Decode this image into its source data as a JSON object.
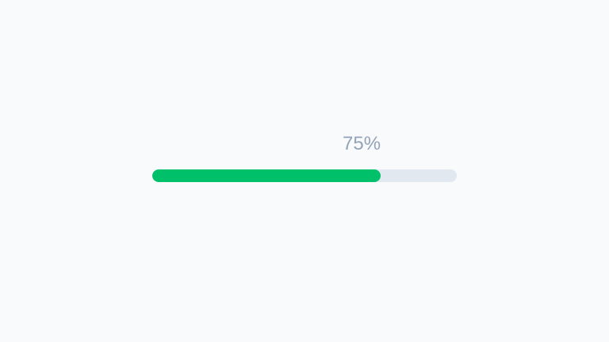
{
  "progress": {
    "label": "75%",
    "value_percent": 75,
    "fill_color": "#00c16a",
    "track_color": "#e2e8f0"
  }
}
